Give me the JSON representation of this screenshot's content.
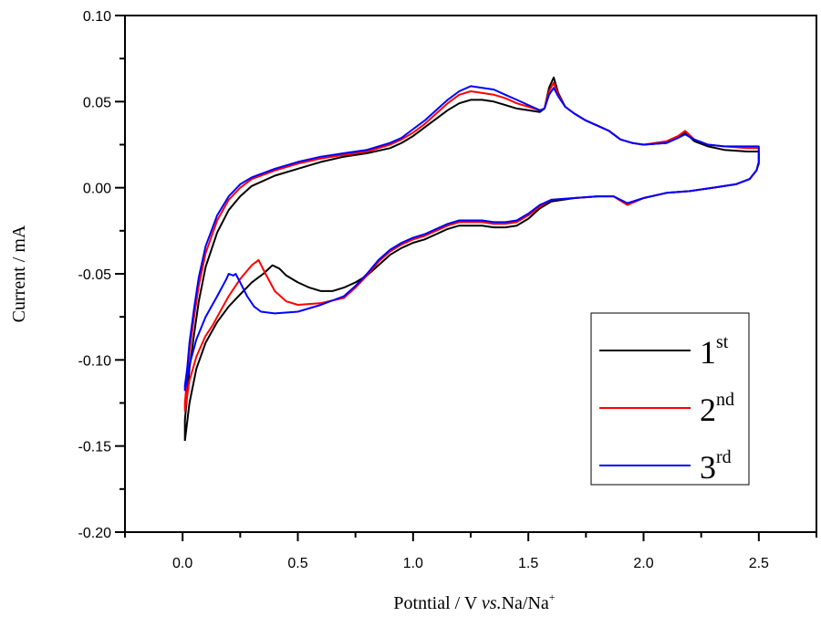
{
  "chart_data": {
    "type": "line",
    "title": "",
    "xlabel": {
      "main": "Potntial / V ",
      "italic": "vs.",
      "rest": "Na/Na",
      "sup": "+"
    },
    "ylabel": "Current / mA",
    "xlim": [
      -0.25,
      2.75
    ],
    "ylim": [
      -0.2,
      0.1
    ],
    "x_ticks": [
      0.0,
      0.5,
      1.0,
      1.5,
      2.0,
      2.5
    ],
    "x_tick_labels": [
      "0.0",
      "0.5",
      "1.0",
      "1.5",
      "2.0",
      "2.5"
    ],
    "x_minor_ticks": [
      -0.25,
      0.25,
      0.75,
      1.25,
      1.75,
      2.25,
      2.75
    ],
    "y_ticks": [
      0.1,
      0.05,
      0.0,
      -0.05,
      -0.1,
      -0.15,
      -0.2
    ],
    "y_tick_labels": [
      "0.10",
      "0.05",
      "0.00",
      "-0.05",
      "-0.10",
      "-0.15",
      "-0.20"
    ],
    "y_minor_ticks": [
      0.075,
      0.025,
      -0.025,
      -0.075,
      -0.125,
      -0.175
    ],
    "grid": false,
    "legend": {
      "placement": "bottom-right",
      "entries": [
        {
          "main": "1",
          "sup": "st"
        },
        {
          "main": "2",
          "sup": "nd"
        },
        {
          "main": "3",
          "sup": "rd"
        }
      ]
    },
    "series": [
      {
        "name": "1st",
        "color": "#000000",
        "points": [
          [
            0.01,
            -0.147
          ],
          [
            0.03,
            -0.125
          ],
          [
            0.06,
            -0.105
          ],
          [
            0.1,
            -0.09
          ],
          [
            0.15,
            -0.078
          ],
          [
            0.2,
            -0.069
          ],
          [
            0.25,
            -0.062
          ],
          [
            0.3,
            -0.055
          ],
          [
            0.35,
            -0.05
          ],
          [
            0.39,
            -0.045
          ],
          [
            0.42,
            -0.047
          ],
          [
            0.45,
            -0.051
          ],
          [
            0.5,
            -0.055
          ],
          [
            0.55,
            -0.058
          ],
          [
            0.6,
            -0.06
          ],
          [
            0.65,
            -0.06
          ],
          [
            0.7,
            -0.058
          ],
          [
            0.75,
            -0.055
          ],
          [
            0.8,
            -0.051
          ],
          [
            0.85,
            -0.045
          ],
          [
            0.9,
            -0.039
          ],
          [
            0.95,
            -0.035
          ],
          [
            1.0,
            -0.032
          ],
          [
            1.05,
            -0.03
          ],
          [
            1.1,
            -0.027
          ],
          [
            1.15,
            -0.024
          ],
          [
            1.2,
            -0.022
          ],
          [
            1.25,
            -0.022
          ],
          [
            1.3,
            -0.022
          ],
          [
            1.35,
            -0.023
          ],
          [
            1.4,
            -0.023
          ],
          [
            1.45,
            -0.022
          ],
          [
            1.5,
            -0.018
          ],
          [
            1.55,
            -0.012
          ],
          [
            1.6,
            -0.008
          ],
          [
            1.7,
            -0.006
          ],
          [
            1.8,
            -0.005
          ],
          [
            1.87,
            -0.005
          ],
          [
            1.93,
            -0.01
          ],
          [
            2.0,
            -0.006
          ],
          [
            2.1,
            -0.003
          ],
          [
            2.2,
            -0.002
          ],
          [
            2.3,
            0.0
          ],
          [
            2.4,
            0.002
          ],
          [
            2.46,
            0.005
          ],
          [
            2.49,
            0.01
          ],
          [
            2.5,
            0.014
          ],
          [
            2.5,
            0.021
          ],
          [
            2.45,
            0.021
          ],
          [
            2.35,
            0.022
          ],
          [
            2.28,
            0.024
          ],
          [
            2.22,
            0.027
          ],
          [
            2.18,
            0.032
          ],
          [
            2.15,
            0.029
          ],
          [
            2.1,
            0.026
          ],
          [
            2.0,
            0.025
          ],
          [
            1.95,
            0.026
          ],
          [
            1.9,
            0.028
          ],
          [
            1.85,
            0.033
          ],
          [
            1.8,
            0.036
          ],
          [
            1.75,
            0.039
          ],
          [
            1.7,
            0.043
          ],
          [
            1.66,
            0.047
          ],
          [
            1.63,
            0.055
          ],
          [
            1.61,
            0.064
          ],
          [
            1.59,
            0.058
          ],
          [
            1.57,
            0.046
          ],
          [
            1.55,
            0.044
          ],
          [
            1.5,
            0.045
          ],
          [
            1.45,
            0.046
          ],
          [
            1.4,
            0.048
          ],
          [
            1.35,
            0.05
          ],
          [
            1.3,
            0.051
          ],
          [
            1.25,
            0.051
          ],
          [
            1.2,
            0.049
          ],
          [
            1.15,
            0.045
          ],
          [
            1.1,
            0.04
          ],
          [
            1.05,
            0.035
          ],
          [
            1.0,
            0.03
          ],
          [
            0.95,
            0.026
          ],
          [
            0.9,
            0.023
          ],
          [
            0.8,
            0.02
          ],
          [
            0.7,
            0.018
          ],
          [
            0.6,
            0.015
          ],
          [
            0.5,
            0.011
          ],
          [
            0.4,
            0.007
          ],
          [
            0.3,
            0.001
          ],
          [
            0.25,
            -0.005
          ],
          [
            0.2,
            -0.013
          ],
          [
            0.15,
            -0.026
          ],
          [
            0.1,
            -0.046
          ],
          [
            0.07,
            -0.066
          ],
          [
            0.05,
            -0.085
          ],
          [
            0.03,
            -0.105
          ],
          [
            0.02,
            -0.12
          ],
          [
            0.01,
            -0.135
          ],
          [
            0.01,
            -0.147
          ]
        ]
      },
      {
        "name": "2nd",
        "color": "#ff0000",
        "points": [
          [
            0.01,
            -0.13
          ],
          [
            0.03,
            -0.112
          ],
          [
            0.06,
            -0.098
          ],
          [
            0.1,
            -0.086
          ],
          [
            0.13,
            -0.08
          ],
          [
            0.15,
            -0.075
          ],
          [
            0.2,
            -0.063
          ],
          [
            0.25,
            -0.053
          ],
          [
            0.3,
            -0.045
          ],
          [
            0.33,
            -0.042
          ],
          [
            0.36,
            -0.05
          ],
          [
            0.4,
            -0.06
          ],
          [
            0.45,
            -0.066
          ],
          [
            0.5,
            -0.068
          ],
          [
            0.6,
            -0.067
          ],
          [
            0.7,
            -0.064
          ],
          [
            0.75,
            -0.058
          ],
          [
            0.8,
            -0.051
          ],
          [
            0.85,
            -0.043
          ],
          [
            0.9,
            -0.037
          ],
          [
            0.95,
            -0.033
          ],
          [
            1.0,
            -0.03
          ],
          [
            1.05,
            -0.028
          ],
          [
            1.1,
            -0.025
          ],
          [
            1.15,
            -0.022
          ],
          [
            1.2,
            -0.02
          ],
          [
            1.25,
            -0.02
          ],
          [
            1.3,
            -0.02
          ],
          [
            1.35,
            -0.021
          ],
          [
            1.4,
            -0.021
          ],
          [
            1.45,
            -0.02
          ],
          [
            1.5,
            -0.016
          ],
          [
            1.55,
            -0.011
          ],
          [
            1.6,
            -0.007
          ],
          [
            1.7,
            -0.006
          ],
          [
            1.8,
            -0.005
          ],
          [
            1.87,
            -0.005
          ],
          [
            1.93,
            -0.01
          ],
          [
            2.0,
            -0.006
          ],
          [
            2.1,
            -0.003
          ],
          [
            2.2,
            -0.002
          ],
          [
            2.3,
            0.0
          ],
          [
            2.4,
            0.002
          ],
          [
            2.46,
            0.005
          ],
          [
            2.49,
            0.01
          ],
          [
            2.5,
            0.015
          ],
          [
            2.5,
            0.023
          ],
          [
            2.45,
            0.023
          ],
          [
            2.35,
            0.024
          ],
          [
            2.28,
            0.025
          ],
          [
            2.22,
            0.028
          ],
          [
            2.18,
            0.033
          ],
          [
            2.15,
            0.03
          ],
          [
            2.1,
            0.027
          ],
          [
            2.0,
            0.025
          ],
          [
            1.95,
            0.026
          ],
          [
            1.9,
            0.028
          ],
          [
            1.85,
            0.033
          ],
          [
            1.8,
            0.036
          ],
          [
            1.75,
            0.039
          ],
          [
            1.7,
            0.043
          ],
          [
            1.66,
            0.047
          ],
          [
            1.63,
            0.054
          ],
          [
            1.61,
            0.061
          ],
          [
            1.59,
            0.056
          ],
          [
            1.57,
            0.046
          ],
          [
            1.55,
            0.045
          ],
          [
            1.5,
            0.047
          ],
          [
            1.45,
            0.049
          ],
          [
            1.4,
            0.052
          ],
          [
            1.35,
            0.054
          ],
          [
            1.3,
            0.055
          ],
          [
            1.25,
            0.056
          ],
          [
            1.2,
            0.054
          ],
          [
            1.15,
            0.049
          ],
          [
            1.1,
            0.043
          ],
          [
            1.05,
            0.037
          ],
          [
            1.0,
            0.032
          ],
          [
            0.95,
            0.028
          ],
          [
            0.9,
            0.025
          ],
          [
            0.8,
            0.021
          ],
          [
            0.7,
            0.019
          ],
          [
            0.6,
            0.017
          ],
          [
            0.5,
            0.014
          ],
          [
            0.4,
            0.01
          ],
          [
            0.3,
            0.005
          ],
          [
            0.25,
            0.0
          ],
          [
            0.2,
            -0.007
          ],
          [
            0.15,
            -0.019
          ],
          [
            0.1,
            -0.038
          ],
          [
            0.07,
            -0.057
          ],
          [
            0.05,
            -0.075
          ],
          [
            0.03,
            -0.095
          ],
          [
            0.02,
            -0.11
          ],
          [
            0.01,
            -0.125
          ],
          [
            0.01,
            -0.13
          ]
        ]
      },
      {
        "name": "3rd",
        "color": "#0000ff",
        "points": [
          [
            0.01,
            -0.118
          ],
          [
            0.03,
            -0.103
          ],
          [
            0.06,
            -0.088
          ],
          [
            0.1,
            -0.075
          ],
          [
            0.15,
            -0.063
          ],
          [
            0.19,
            -0.053
          ],
          [
            0.2,
            -0.05
          ],
          [
            0.22,
            -0.051
          ],
          [
            0.23,
            -0.05
          ],
          [
            0.25,
            -0.055
          ],
          [
            0.28,
            -0.063
          ],
          [
            0.31,
            -0.069
          ],
          [
            0.34,
            -0.072
          ],
          [
            0.4,
            -0.073
          ],
          [
            0.5,
            -0.072
          ],
          [
            0.6,
            -0.068
          ],
          [
            0.7,
            -0.063
          ],
          [
            0.75,
            -0.057
          ],
          [
            0.8,
            -0.05
          ],
          [
            0.85,
            -0.042
          ],
          [
            0.9,
            -0.036
          ],
          [
            0.95,
            -0.032
          ],
          [
            1.0,
            -0.029
          ],
          [
            1.05,
            -0.027
          ],
          [
            1.1,
            -0.024
          ],
          [
            1.15,
            -0.021
          ],
          [
            1.2,
            -0.019
          ],
          [
            1.25,
            -0.019
          ],
          [
            1.3,
            -0.019
          ],
          [
            1.35,
            -0.02
          ],
          [
            1.4,
            -0.02
          ],
          [
            1.45,
            -0.019
          ],
          [
            1.5,
            -0.015
          ],
          [
            1.55,
            -0.01
          ],
          [
            1.6,
            -0.007
          ],
          [
            1.7,
            -0.006
          ],
          [
            1.8,
            -0.005
          ],
          [
            1.87,
            -0.005
          ],
          [
            1.93,
            -0.009
          ],
          [
            2.0,
            -0.006
          ],
          [
            2.1,
            -0.003
          ],
          [
            2.2,
            -0.002
          ],
          [
            2.3,
            0.0
          ],
          [
            2.4,
            0.002
          ],
          [
            2.46,
            0.005
          ],
          [
            2.49,
            0.01
          ],
          [
            2.5,
            0.015
          ],
          [
            2.5,
            0.024
          ],
          [
            2.45,
            0.024
          ],
          [
            2.35,
            0.024
          ],
          [
            2.28,
            0.025
          ],
          [
            2.22,
            0.028
          ],
          [
            2.18,
            0.031
          ],
          [
            2.15,
            0.029
          ],
          [
            2.1,
            0.026
          ],
          [
            2.0,
            0.025
          ],
          [
            1.95,
            0.026
          ],
          [
            1.9,
            0.028
          ],
          [
            1.85,
            0.033
          ],
          [
            1.8,
            0.036
          ],
          [
            1.75,
            0.039
          ],
          [
            1.7,
            0.043
          ],
          [
            1.66,
            0.047
          ],
          [
            1.63,
            0.053
          ],
          [
            1.61,
            0.058
          ],
          [
            1.59,
            0.054
          ],
          [
            1.57,
            0.046
          ],
          [
            1.55,
            0.045
          ],
          [
            1.5,
            0.048
          ],
          [
            1.45,
            0.051
          ],
          [
            1.4,
            0.054
          ],
          [
            1.35,
            0.057
          ],
          [
            1.3,
            0.058
          ],
          [
            1.25,
            0.059
          ],
          [
            1.2,
            0.056
          ],
          [
            1.15,
            0.051
          ],
          [
            1.1,
            0.045
          ],
          [
            1.05,
            0.039
          ],
          [
            1.0,
            0.034
          ],
          [
            0.95,
            0.029
          ],
          [
            0.9,
            0.026
          ],
          [
            0.8,
            0.022
          ],
          [
            0.7,
            0.02
          ],
          [
            0.6,
            0.018
          ],
          [
            0.5,
            0.015
          ],
          [
            0.4,
            0.011
          ],
          [
            0.3,
            0.006
          ],
          [
            0.25,
            0.002
          ],
          [
            0.2,
            -0.005
          ],
          [
            0.15,
            -0.016
          ],
          [
            0.1,
            -0.034
          ],
          [
            0.07,
            -0.052
          ],
          [
            0.05,
            -0.07
          ],
          [
            0.03,
            -0.09
          ],
          [
            0.02,
            -0.105
          ],
          [
            0.01,
            -0.115
          ],
          [
            0.01,
            -0.118
          ]
        ]
      }
    ]
  }
}
